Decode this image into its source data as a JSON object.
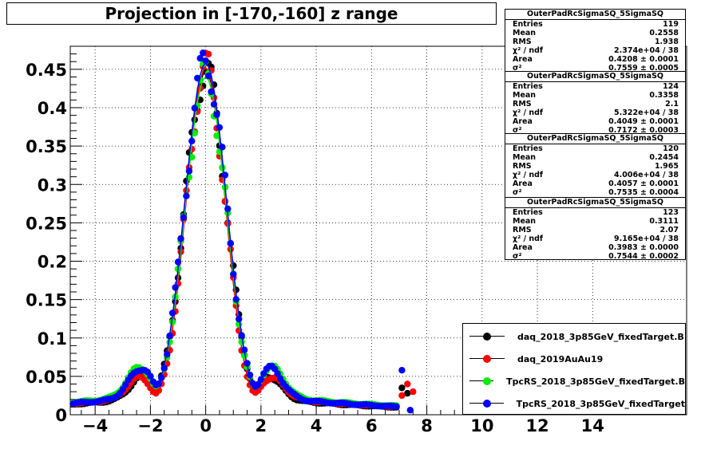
{
  "chart_data": {
    "type": "scatter",
    "title": "Projection in [-170,-160] z range",
    "xlim": [
      -4.9,
      17.4
    ],
    "ylim": [
      0,
      0.48
    ],
    "x_ticks": [
      "−4",
      "−2",
      "0",
      "2",
      "4",
      "6",
      "8",
      "10",
      "12",
      "14"
    ],
    "x_tick_values": [
      -4,
      -2,
      0,
      2,
      4,
      6,
      8,
      10,
      12,
      14
    ],
    "y_ticks": [
      "0",
      "0.05",
      "0.1",
      "0.15",
      "0.2",
      "0.25",
      "0.3",
      "0.35",
      "0.4",
      "0.45"
    ],
    "y_tick_values": [
      0,
      0.05,
      0.1,
      0.15,
      0.2,
      0.25,
      0.3,
      0.35,
      0.4,
      0.45
    ],
    "grid": true,
    "legend_position": "bottom-right",
    "series": [
      {
        "name": "daq_2018_3p85GeV_fixedTarget.B",
        "color": "#000000",
        "peak": 0.447,
        "sigma": 0.7559,
        "side_amp": 0.03,
        "side_mu": 2.3,
        "tail": 0.022,
        "extra": [
          [
            7.1,
            0.035
          ],
          [
            7.3,
            0.028
          ]
        ]
      },
      {
        "name": "daq_2019AuAu19",
        "color": "#ff0000",
        "peak": 0.452,
        "sigma": 0.7172,
        "side_amp": 0.028,
        "side_mu": 2.4,
        "tail": 0.024,
        "extra": [
          [
            7.1,
            0.025
          ],
          [
            7.3,
            0.04
          ],
          [
            7.5,
            0.03
          ]
        ]
      },
      {
        "name": "TpcRS_2018_3p85GeV_fixedTarget.B",
        "color": "#00ee00",
        "peak": 0.44,
        "sigma": 0.7535,
        "side_amp": 0.04,
        "side_mu": 2.4,
        "tail": 0.026,
        "extra": []
      },
      {
        "name": "TpcRS_2018_3p85GeV_fixedTarget",
        "color": "#0000ff",
        "peak": 0.458,
        "sigma": 0.7544,
        "side_amp": 0.04,
        "side_mu": 2.35,
        "tail": 0.024,
        "extra": [
          [
            7.1,
            0.058
          ],
          [
            7.4,
            0.006
          ]
        ]
      }
    ]
  },
  "stats_boxes": [
    {
      "title": "OuterPadRcSigmaSQ_5SigmaSQ",
      "entries": "119",
      "mean": "0.2558",
      "rms": "1.938",
      "chi2": "2.374e+04 / 38",
      "area": "0.4208 ± 0.0001",
      "sigma": "0.7559 ± 0.0005"
    },
    {
      "title": "OuterPadRcSigmaSQ_5SigmaSQ",
      "entries": "124",
      "mean": "0.3358",
      "rms": "2.1",
      "chi2": "5.322e+04 / 38",
      "area": "0.4049 ± 0.0001",
      "sigma": "0.7172 ± 0.0003"
    },
    {
      "title": "OuterPadRcSigmaSQ_5SigmaSQ",
      "entries": "120",
      "mean": "0.2454",
      "rms": "1.965",
      "chi2": "4.006e+04 / 38",
      "area": "0.4057 ± 0.0001",
      "sigma": "0.7535 ± 0.0004"
    },
    {
      "title": "OuterPadRcSigmaSQ_5SigmaSQ",
      "entries": "123",
      "mean": "0.3111",
      "rms": "2.07",
      "chi2": "9.165e+04 / 38",
      "area": "0.3983 ± 0.0000",
      "sigma": "0.7544 ± 0.0002"
    }
  ],
  "stats_labels": {
    "entries": "Entries",
    "mean": "Mean",
    "rms": "RMS",
    "chi2": "χ² / ndf",
    "area": "Area",
    "sigma": "σ²"
  }
}
